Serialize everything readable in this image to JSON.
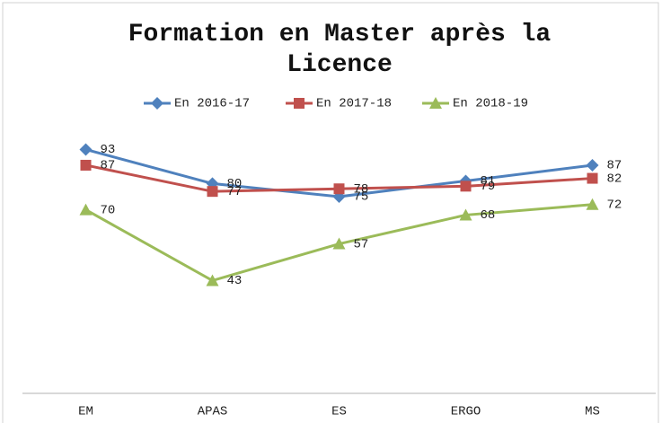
{
  "chart_data": {
    "type": "line",
    "title": "Formation en Master après la Licence",
    "categories": [
      "EM",
      "APAS",
      "ES",
      "ERGO",
      "MS"
    ],
    "series": [
      {
        "name": "En 2016-17",
        "color": "#4f81bd",
        "marker": "diamond",
        "values": [
          93,
          80,
          75,
          81,
          87
        ]
      },
      {
        "name": "En 2017-18",
        "color": "#c0504d",
        "marker": "square",
        "values": [
          87,
          77,
          78,
          79,
          82
        ]
      },
      {
        "name": "En 2018-19",
        "color": "#9bbb59",
        "marker": "triangle",
        "values": [
          70,
          43,
          57,
          68,
          72
        ]
      }
    ],
    "ylim": [
      0,
      100
    ],
    "legend": "top"
  }
}
